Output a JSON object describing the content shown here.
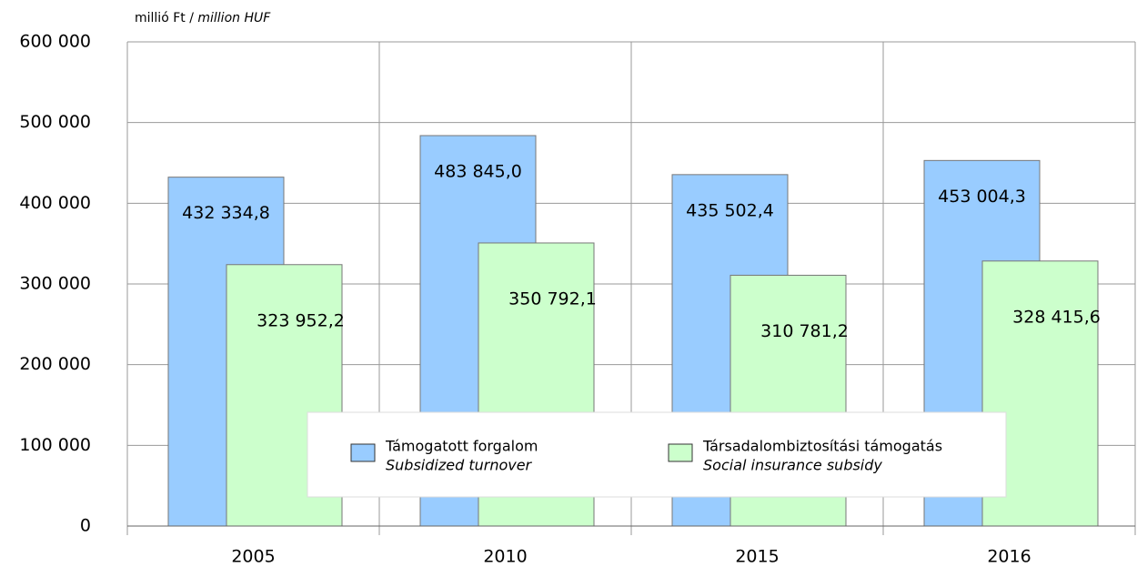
{
  "chart_data": {
    "type": "bar",
    "y_unit": "millió Ft /",
    "y_unit_en": "million HUF",
    "categories": [
      "2005",
      "2010",
      "2015",
      "2016"
    ],
    "series": [
      {
        "name": "Támogatott forgalom",
        "name_en": "Subsidized turnover",
        "color": "#99ccff",
        "values": [
          432334.8,
          483845.0,
          435502.4,
          453004.3
        ],
        "value_labels": [
          "432 334,8",
          "483 845,0",
          "435 502,4",
          "453 004,3"
        ]
      },
      {
        "name": "Társadalombiztosítási támogatás",
        "name_en": "Social insurance subsidy",
        "color": "#ccffcc",
        "values": [
          323952.2,
          350792.1,
          310781.2,
          328415.6
        ],
        "value_labels": [
          "323 952,2",
          "350 792,1",
          "310 781,2",
          "328 415,6"
        ]
      }
    ],
    "ylim": [
      0,
      600000
    ],
    "yticks": [
      0,
      {
        "value": 100000,
        "label": "100 000"
      },
      {
        "value": 200000,
        "label": "200 000"
      },
      {
        "value": 300000,
        "label": "300 000"
      },
      {
        "value": 400000,
        "label": "400 000"
      },
      {
        "value": 500000,
        "label": "500 000"
      },
      {
        "value": 600000,
        "label": "600 000"
      }
    ],
    "grid": true
  }
}
